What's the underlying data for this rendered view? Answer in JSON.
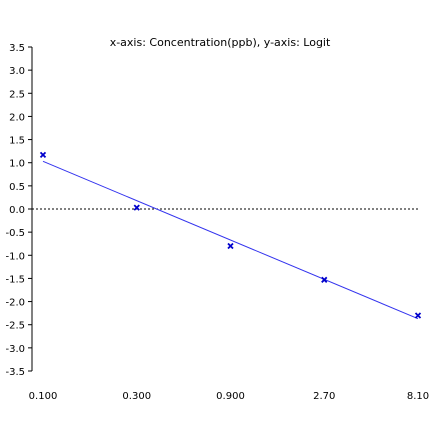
{
  "chart_data": {
    "type": "scatter",
    "title": "x-axis: Concentration(ppb), y-axis: Logit",
    "xlabel": "",
    "ylabel": "",
    "x_scale": "log",
    "x_ticks": [
      "0.100",
      "0.300",
      "0.900",
      "2.70",
      "8.10"
    ],
    "x_tick_values": [
      0.1,
      0.3,
      0.9,
      2.7,
      8.1
    ],
    "xlim": [
      0.1,
      8.1
    ],
    "ylim": [
      -3.5,
      3.5
    ],
    "y_ticks": [
      "3.5",
      "3.0",
      "2.5",
      "2.0",
      "1.5",
      "1.0",
      "0.5",
      "0.0",
      "-0.5",
      "-1.0",
      "-1.5",
      "-2.0",
      "-2.5",
      "-3.0",
      "-3.5"
    ],
    "y_tick_values": [
      3.5,
      3.0,
      2.5,
      2.0,
      1.5,
      1.0,
      0.5,
      0.0,
      -0.5,
      -1.0,
      -1.5,
      -2.0,
      -2.5,
      -3.0,
      -3.5
    ],
    "points": [
      {
        "x": 0.1,
        "y": 1.17
      },
      {
        "x": 0.3,
        "y": 0.03
      },
      {
        "x": 0.9,
        "y": -0.8
      },
      {
        "x": 2.7,
        "y": -1.53
      },
      {
        "x": 8.1,
        "y": -2.3
      }
    ],
    "fit_line": {
      "x": [
        0.1,
        8.1
      ],
      "y": [
        1.03,
        -2.37
      ]
    },
    "reference_line_y": 0.0,
    "grid": false,
    "colors": {
      "series": "#0000cc",
      "fit": "#3333ee",
      "axis": "#000000",
      "reference": "#000000"
    }
  }
}
